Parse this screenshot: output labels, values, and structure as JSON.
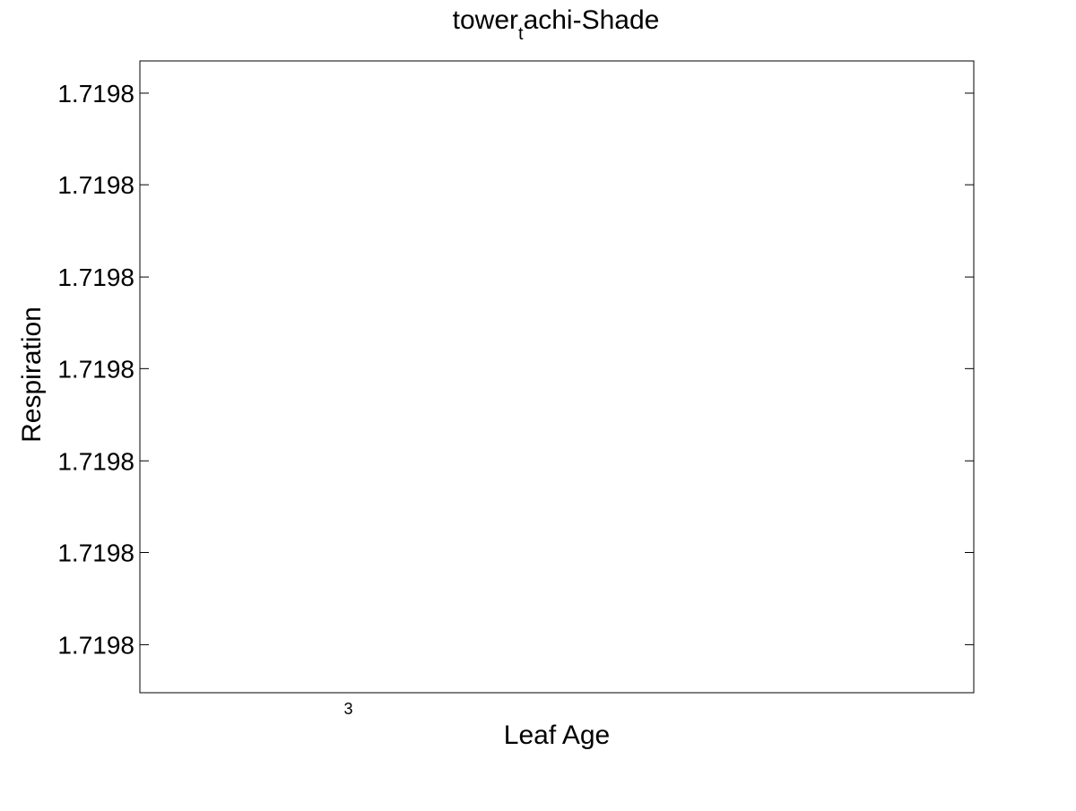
{
  "chart_data": {
    "type": "line",
    "title": {
      "main": "tower",
      "subscript": "t",
      "rest": "achi-Shade"
    },
    "xlabel": "Leaf Age",
    "ylabel": "Respiration",
    "x_ticks": [
      3
    ],
    "x_tick_labels": [
      "3"
    ],
    "xlim": [
      2,
      6
    ],
    "y_tick_labels": [
      "1.7198",
      "1.7198",
      "1.7198",
      "1.7198",
      "1.7198",
      "1.7198",
      "1.7198"
    ],
    "y_tick_fractions": [
      0.949,
      0.804,
      0.658,
      0.513,
      0.367,
      0.222,
      0.076
    ],
    "series": [],
    "grid": false,
    "legend": "none"
  }
}
